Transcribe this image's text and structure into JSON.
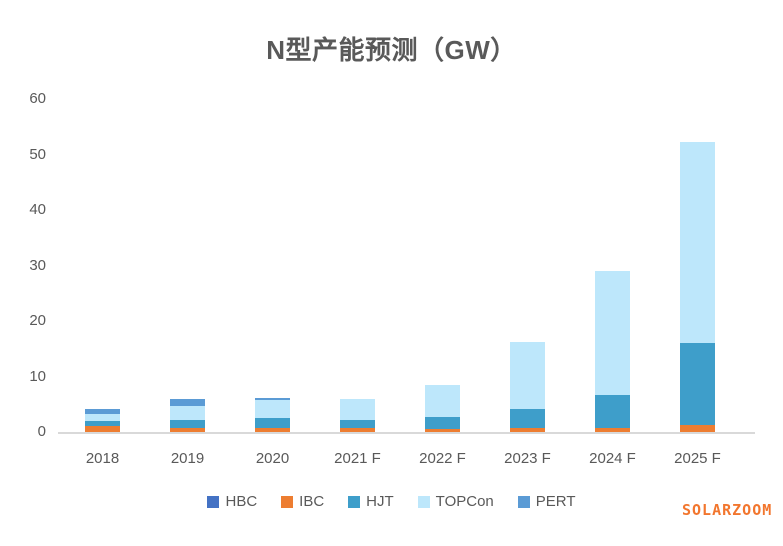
{
  "title": "N型产能预测（GW）",
  "watermark": "SOLARZOOM",
  "colors": {
    "title_text": "#595959",
    "axis_text": "#595959",
    "axis_line": "#D9D9D9",
    "watermark": "#F2762E",
    "background": "#FFFFFF"
  },
  "chart_data": {
    "type": "bar",
    "stacked": true,
    "title": "N型产能预测（GW）",
    "categories": [
      "2018",
      "2019",
      "2020",
      "2021 F",
      "2022 F",
      "2023 F",
      "2024 F",
      "2025 F"
    ],
    "series": [
      {
        "name": "HBC",
        "color": "#4472C4",
        "values": [
          0,
          0,
          0,
          0,
          0,
          0,
          0,
          0
        ]
      },
      {
        "name": "IBC",
        "color": "#ED7D31",
        "values": [
          1.0,
          0.8,
          0.8,
          0.8,
          0.6,
          0.7,
          0.7,
          1.2
        ]
      },
      {
        "name": "HJT",
        "color": "#3E9ECA",
        "values": [
          0.9,
          1.3,
          1.8,
          1.3,
          2.1,
          3.4,
          6.0,
          14.8
        ]
      },
      {
        "name": "TOPCon",
        "color": "#BDE7FB",
        "values": [
          1.3,
          2.6,
          3.1,
          3.8,
          5.7,
          12.2,
          22.3,
          36.3
        ]
      },
      {
        "name": "PERT",
        "color": "#5B9BD5",
        "values": [
          1.0,
          1.2,
          0.5,
          0,
          0,
          0,
          0,
          0
        ]
      }
    ],
    "totals": [
      4.2,
      5.9,
      6.2,
      5.9,
      8.4,
      16.3,
      29.0,
      52.3
    ],
    "xlabel": "",
    "ylabel": "",
    "ylim": [
      0,
      60
    ],
    "yticks": [
      0,
      10,
      20,
      30,
      40,
      50,
      60
    ],
    "grid": false,
    "legend_position": "bottom"
  }
}
